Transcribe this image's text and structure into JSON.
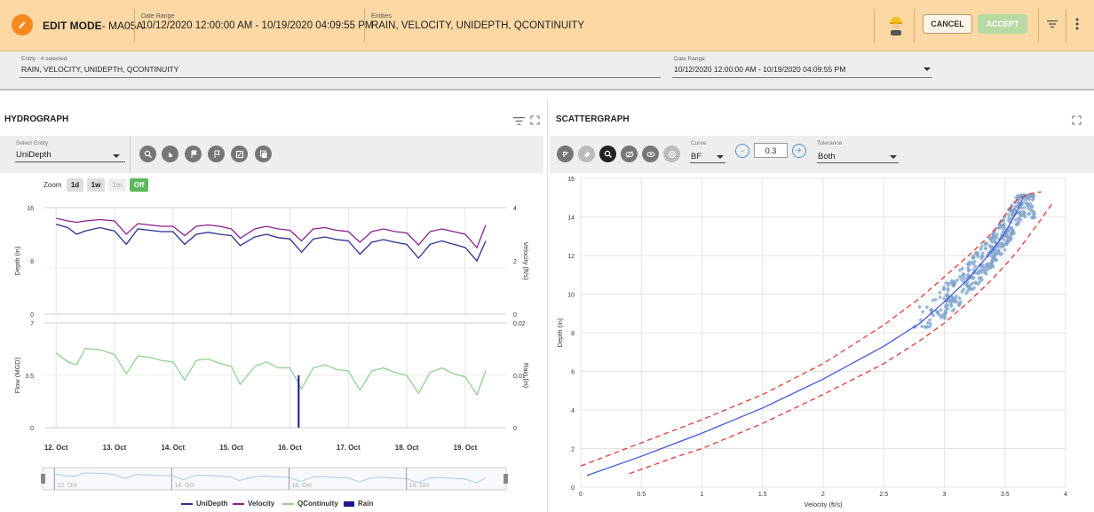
{
  "header": {
    "edit_mode_label": "EDIT MODE",
    "site_name": "- MA05A",
    "date_range_label": "Date Range",
    "date_range_value": "10/12/2020 12:00:00 AM - 10/19/2020 04:09:55 PM",
    "entities_label": "Entities",
    "entities_value": "RAIN, VELOCITY, UNIDEPTH, QCONTINUITY",
    "cancel_label": "CANCEL",
    "accept_label": "ACCEPT",
    "accent_color": "#f5891f",
    "icons": [
      "pencil-icon",
      "worker-icon",
      "filter-icon",
      "more-vert-icon"
    ]
  },
  "filters": {
    "entity_label": "Entity : 4 selected",
    "entity_value": "RAIN, VELOCITY, UNIDEPTH, QCONTINUITY",
    "date_label": "Date Range:",
    "date_value": "10/12/2020 12:00:00 AM - 10/19/2020 04:09:55 PM"
  },
  "hydrograph": {
    "title": "HYDROGRAPH",
    "select_label": "Select Entity",
    "select_value": "UniDepth",
    "zoom_label": "Zoom",
    "zoom_options": [
      "1d",
      "1w",
      "1m",
      "Off"
    ],
    "zoom_selected": "Off",
    "toolbar_icons": [
      "zoom-icon",
      "pan-icon",
      "flag-icon",
      "flag-outline-icon",
      "edit-box-icon",
      "copy-icon"
    ],
    "legend": [
      {
        "name": "UniDepth",
        "color": "#2b2f8f"
      },
      {
        "name": "Velocity",
        "color": "#8b1f8f"
      },
      {
        "name": "QContinuity",
        "color": "#8fd18f"
      },
      {
        "name": "Rain",
        "color": "#1a1a8f"
      }
    ]
  },
  "scattergraph": {
    "title": "SCATTERGRAPH",
    "curve_label": "Curve",
    "curve_value": "BF",
    "step_value": "0.3",
    "minus_label": "-",
    "plus_label": "+",
    "tolerance_label": "Tolerance",
    "tolerance_value": "Both",
    "toolbar_icons": [
      "cursor-icon",
      "eraser-icon",
      "zoom-icon",
      "hide-icon",
      "show-icon",
      "clear-icon"
    ]
  },
  "chart_data": [
    {
      "type": "line",
      "panel": "depth-velocity",
      "x_ticks": [
        "12. Oct",
        "13. Oct",
        "14. Oct",
        "15. Oct",
        "16. Oct",
        "17. Oct",
        "18. Oct",
        "19. Oct"
      ],
      "ylabel": "Depth (in)",
      "y_ticks": [
        "0",
        "8",
        "16"
      ],
      "ylim": [
        0,
        16
      ],
      "y2label": "Velocity (ft/s)",
      "y2_ticks": [
        "0",
        "2",
        "4"
      ],
      "y2lim": [
        0,
        4
      ],
      "series": [
        {
          "name": "UniDepth",
          "axis": "left",
          "x": [
            12.0,
            12.2,
            12.35,
            12.5,
            12.75,
            13.0,
            13.2,
            13.4,
            13.6,
            13.8,
            14.0,
            14.2,
            14.4,
            14.6,
            14.8,
            15.0,
            15.15,
            15.4,
            15.6,
            15.8,
            16.0,
            16.2,
            16.4,
            16.6,
            16.8,
            17.0,
            17.2,
            17.4,
            17.6,
            17.8,
            18.0,
            18.2,
            18.4,
            18.6,
            18.8,
            19.0,
            19.2,
            19.35
          ],
          "values": [
            13.5,
            13.0,
            12.0,
            12.5,
            13.0,
            12.5,
            10.5,
            12.8,
            12.6,
            12.4,
            12.4,
            10.5,
            12.0,
            12.3,
            12.0,
            11.8,
            10.3,
            11.6,
            12.0,
            11.5,
            11.3,
            9.3,
            11.3,
            11.6,
            11.2,
            11.0,
            9.0,
            10.8,
            11.2,
            10.8,
            10.5,
            8.4,
            10.5,
            11.0,
            10.5,
            10.0,
            8.0,
            11.0
          ]
        },
        {
          "name": "Velocity",
          "axis": "right",
          "x": [
            12.0,
            12.2,
            12.35,
            12.5,
            12.75,
            13.0,
            13.2,
            13.4,
            13.6,
            13.8,
            14.0,
            14.2,
            14.4,
            14.6,
            14.8,
            15.0,
            15.15,
            15.4,
            15.6,
            15.8,
            16.0,
            16.2,
            16.4,
            16.6,
            16.8,
            17.0,
            17.2,
            17.4,
            17.6,
            17.8,
            18.0,
            18.2,
            18.4,
            18.6,
            18.8,
            19.0,
            19.2,
            19.35
          ],
          "values": [
            3.6,
            3.5,
            3.45,
            3.5,
            3.55,
            3.5,
            3.0,
            3.4,
            3.35,
            3.3,
            3.3,
            2.95,
            3.3,
            3.35,
            3.3,
            3.2,
            2.85,
            3.2,
            3.3,
            3.2,
            3.15,
            2.75,
            3.2,
            3.25,
            3.15,
            3.1,
            2.7,
            3.1,
            3.2,
            3.1,
            3.05,
            2.6,
            3.1,
            3.2,
            3.1,
            3.0,
            2.5,
            3.35
          ]
        }
      ]
    },
    {
      "type": "line",
      "panel": "flow-rain",
      "x_ticks": [
        "12. Oct",
        "13. Oct",
        "14. Oct",
        "15. Oct",
        "16. Oct",
        "17. Oct",
        "18. Oct",
        "19. Oct"
      ],
      "ylabel": "Flow (MGD)",
      "y_ticks": [
        "0",
        "3.5",
        "7"
      ],
      "ylim": [
        0,
        7
      ],
      "y2label": "Rain (in)",
      "y2_ticks": [
        "0",
        "0.01",
        "0.02"
      ],
      "y2lim": [
        0,
        0.02
      ],
      "series": [
        {
          "name": "QContinuity",
          "axis": "left",
          "x": [
            12.0,
            12.2,
            12.35,
            12.5,
            12.75,
            13.0,
            13.2,
            13.4,
            13.6,
            13.8,
            14.0,
            14.2,
            14.4,
            14.6,
            14.8,
            15.0,
            15.15,
            15.4,
            15.6,
            15.8,
            16.0,
            16.2,
            16.4,
            16.6,
            16.8,
            17.0,
            17.2,
            17.4,
            17.6,
            17.8,
            18.0,
            18.2,
            18.4,
            18.6,
            18.8,
            19.0,
            19.2,
            19.35
          ],
          "values": [
            5.0,
            4.4,
            4.2,
            5.3,
            5.2,
            4.9,
            3.6,
            4.8,
            4.7,
            4.5,
            4.4,
            3.2,
            4.5,
            4.6,
            4.3,
            4.1,
            2.9,
            4.1,
            4.4,
            4.0,
            4.0,
            2.6,
            4.0,
            4.2,
            3.9,
            3.8,
            2.5,
            3.8,
            4.0,
            3.7,
            3.5,
            2.3,
            3.7,
            4.0,
            3.6,
            3.4,
            2.2,
            3.8
          ]
        },
        {
          "name": "Rain",
          "axis": "right",
          "type": "bar",
          "x": [
            16.15
          ],
          "values": [
            0.01
          ]
        }
      ]
    },
    {
      "type": "scatter",
      "panel": "scattergraph",
      "xlabel": "Velocity (ft/s)",
      "ylabel": "Depth (in)",
      "xlim": [
        0,
        4
      ],
      "ylim": [
        0,
        16
      ],
      "x_ticks": [
        "0",
        "0.5",
        "1",
        "1.5",
        "2",
        "2.5",
        "3",
        "3.5",
        "4"
      ],
      "y_ticks": [
        "0",
        "2",
        "4",
        "6",
        "8",
        "10",
        "12",
        "14",
        "16"
      ],
      "grid": true,
      "best_fit_curve": {
        "x": [
          0.05,
          0.5,
          1.0,
          1.5,
          2.0,
          2.5,
          2.8,
          3.0,
          3.2,
          3.4,
          3.5,
          3.6,
          3.65
        ],
        "values": [
          0.6,
          1.6,
          2.8,
          4.1,
          5.6,
          7.3,
          8.5,
          9.6,
          10.8,
          12.3,
          13.2,
          14.3,
          15.0
        ]
      },
      "upper_tolerance": {
        "x": [
          0,
          0.5,
          1.0,
          1.5,
          2.0,
          2.5,
          2.8,
          3.0,
          3.2,
          3.4,
          3.5,
          3.6,
          3.7,
          3.8
        ],
        "values": [
          1.1,
          2.3,
          3.5,
          4.8,
          6.4,
          8.4,
          9.8,
          10.9,
          12.0,
          13.2,
          14.1,
          14.9,
          15.2,
          15.3
        ]
      },
      "lower_tolerance": {
        "x": [
          0.4,
          0.8,
          1.0,
          1.5,
          2.0,
          2.5,
          2.8,
          3.0,
          3.2,
          3.4,
          3.6,
          3.8,
          3.9
        ],
        "values": [
          0.7,
          1.6,
          2.0,
          3.3,
          4.8,
          6.4,
          7.6,
          8.5,
          9.6,
          10.8,
          12.2,
          13.9,
          14.8
        ]
      },
      "points_region": {
        "x_range": [
          2.75,
          3.75
        ],
        "y_range": [
          8.3,
          15.1
        ]
      }
    }
  ]
}
